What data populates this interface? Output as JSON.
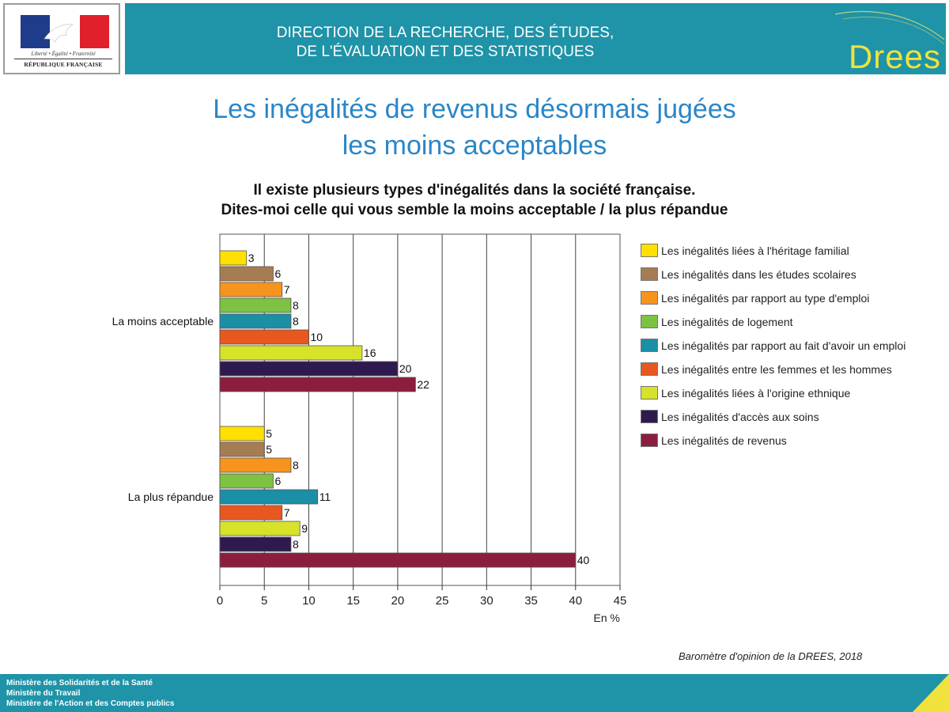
{
  "logo": {
    "motto": "Liberté • Égalité • Fraternité",
    "republique": "RÉPUBLIQUE FRANÇAISE"
  },
  "header": {
    "line1": "DIRECTION DE LA RECHERCHE, DES ÉTUDES,",
    "line2": "DE L'ÉVALUATION ET DES STATISTIQUES",
    "brand": "Drees",
    "background": "#1f93a8",
    "brand_color": "#f0e23c"
  },
  "title": {
    "line1": "Les inégalités de revenus désormais jugées",
    "line2": "les moins acceptables"
  },
  "question": {
    "line1": "Il existe plusieurs types d'inégalités dans la société française.",
    "line2": "Dites-moi celle qui vous semble la moins acceptable / la plus répandue"
  },
  "chart_data": {
    "type": "bar",
    "orientation": "horizontal",
    "categories": [
      "La moins acceptable",
      "La plus répandue"
    ],
    "series": [
      {
        "name": "Les inégalités liées à l'héritage familial",
        "color": "#ffe000",
        "values": [
          3,
          5
        ]
      },
      {
        "name": "Les inégalités dans les études scolaires",
        "color": "#a67c52",
        "values": [
          6,
          5
        ]
      },
      {
        "name": "Les inégalités par rapport au type d'emploi",
        "color": "#f7941d",
        "values": [
          7,
          8
        ]
      },
      {
        "name": "Les inégalités de logement",
        "color": "#7dc242",
        "values": [
          8,
          6
        ]
      },
      {
        "name": "Les inégalités par rapport au fait d'avoir un emploi",
        "color": "#1a8fa6",
        "values": [
          8,
          11
        ]
      },
      {
        "name": "Les inégalités entre les femmes et les hommes",
        "color": "#e8571e",
        "values": [
          10,
          7
        ]
      },
      {
        "name": "Les inégalités liées à l'origine ethnique",
        "color": "#d7e22a",
        "values": [
          16,
          9
        ]
      },
      {
        "name": "Les inégalités d'accès aux soins",
        "color": "#2e1a4f",
        "values": [
          20,
          8
        ]
      },
      {
        "name": "Les inégalités de revenus",
        "color": "#8b1e3f",
        "values": [
          22,
          40
        ]
      }
    ],
    "xlim": [
      0,
      45
    ],
    "xticks": [
      0,
      5,
      10,
      15,
      20,
      25,
      30,
      35,
      40,
      45
    ],
    "xlabel": "En %",
    "grid": true,
    "legend_position": "right"
  },
  "source": "Baromètre d'opinion de la DREES, 2018",
  "footer": {
    "line1": "Ministère des Solidarités et de la Santé",
    "line2": "Ministère du Travail",
    "line3": "Ministère de l'Action et des Comptes publics"
  }
}
